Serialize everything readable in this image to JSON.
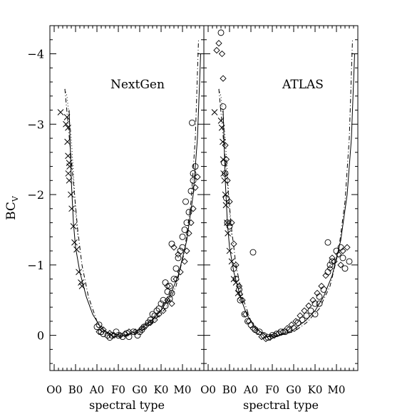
{
  "chart_data": {
    "type": "scatter",
    "ylabel": "BC",
    "ylabel_subscript": "V",
    "ylim": [
      0.5,
      -4.4
    ],
    "y_ticks": [
      {
        "v": 0,
        "label": "0"
      },
      {
        "v": -1,
        "label": "−1"
      },
      {
        "v": -2,
        "label": "−2"
      },
      {
        "v": -3,
        "label": "−3"
      },
      {
        "v": -4,
        "label": "−4"
      }
    ],
    "x_tick_labels": [
      "O0",
      "B0",
      "A0",
      "F0",
      "G0",
      "K0",
      "M0"
    ],
    "x_tick_positions": [
      0,
      10,
      20,
      30,
      40,
      50,
      60
    ],
    "xlim": [
      -2,
      70
    ],
    "xlabel": "spectral type",
    "panels": [
      {
        "title": "NextGen",
        "crosses": [
          [
            3,
            -3.17
          ],
          [
            5.5,
            -3.0
          ],
          [
            6,
            -3.1
          ],
          [
            6.5,
            -2.95
          ],
          [
            6.2,
            -2.75
          ],
          [
            6.5,
            -2.55
          ],
          [
            7.0,
            -2.45
          ],
          [
            6.6,
            -2.3
          ],
          [
            7.2,
            -2.4
          ],
          [
            7.0,
            -2.2
          ],
          [
            7.8,
            -2.0
          ],
          [
            8.2,
            -1.8
          ],
          [
            9.0,
            -1.55
          ],
          [
            9.5,
            -1.32
          ],
          [
            10.5,
            -1.22
          ],
          [
            11.5,
            -0.9
          ],
          [
            12.5,
            -0.75
          ],
          [
            13.0,
            -0.7
          ]
        ],
        "circles": [
          [
            20,
            -0.12
          ],
          [
            21,
            -0.15
          ],
          [
            22,
            -0.05
          ],
          [
            23,
            -0.02
          ],
          [
            25,
            0.0
          ],
          [
            26,
            0.03
          ],
          [
            27,
            0.0
          ],
          [
            29,
            -0.05
          ],
          [
            30,
            0.0
          ],
          [
            32,
            0.02
          ],
          [
            34,
            -0.03
          ],
          [
            35,
            0.02
          ],
          [
            37,
            -0.05
          ],
          [
            39,
            0.0
          ],
          [
            40,
            -0.05
          ],
          [
            41,
            -0.08
          ],
          [
            42,
            -0.12
          ],
          [
            44,
            -0.18
          ],
          [
            45,
            -0.22
          ],
          [
            46,
            -0.3
          ],
          [
            47,
            -0.28
          ],
          [
            48,
            -0.35
          ],
          [
            49,
            -0.38
          ],
          [
            50,
            -0.45
          ],
          [
            51,
            -0.5
          ],
          [
            52,
            -0.42
          ],
          [
            53,
            -0.62
          ],
          [
            54,
            -0.7
          ],
          [
            55,
            -0.6
          ],
          [
            56,
            -0.8
          ],
          [
            57,
            -0.95
          ],
          [
            58,
            -1.1
          ],
          [
            59,
            -1.2
          ],
          [
            60,
            -1.4
          ],
          [
            61,
            -1.5
          ],
          [
            62,
            -1.6
          ],
          [
            63,
            -1.75
          ],
          [
            64,
            -2.05
          ],
          [
            65,
            -2.2
          ],
          [
            66,
            -2.4
          ],
          [
            64.5,
            -3.02
          ],
          [
            65,
            -2.3
          ],
          [
            60,
            -1.25
          ],
          [
            55,
            -1.3
          ],
          [
            61.5,
            -1.9
          ],
          [
            54,
            -0.52
          ],
          [
            52,
            -0.75
          ]
        ],
        "diamonds": [
          [
            21,
            -0.05
          ],
          [
            23,
            -0.08
          ],
          [
            26,
            -0.03
          ],
          [
            28,
            0.0
          ],
          [
            31,
            0.0
          ],
          [
            33,
            -0.02
          ],
          [
            35,
            -0.05
          ],
          [
            38,
            -0.05
          ],
          [
            41,
            -0.1
          ],
          [
            43,
            -0.14
          ],
          [
            45,
            -0.18
          ],
          [
            47,
            -0.22
          ],
          [
            49,
            -0.3
          ],
          [
            51,
            -0.35
          ],
          [
            53,
            -0.5
          ],
          [
            55,
            -0.45
          ],
          [
            57,
            -0.8
          ],
          [
            59,
            -0.9
          ],
          [
            61,
            -1.05
          ],
          [
            62,
            -1.2
          ],
          [
            63,
            -1.45
          ],
          [
            64,
            -1.6
          ],
          [
            65,
            -1.8
          ],
          [
            66,
            -2.1
          ],
          [
            67,
            -2.25
          ],
          [
            58,
            -1.15
          ],
          [
            56,
            -1.25
          ],
          [
            53,
            -0.7
          ]
        ]
      },
      {
        "title": "ATLAS",
        "crosses": [
          [
            3,
            -3.17
          ],
          [
            6,
            -3.05
          ],
          [
            6.4,
            -2.95
          ],
          [
            6.8,
            -2.75
          ],
          [
            7.0,
            -2.5
          ],
          [
            7.2,
            -2.3
          ],
          [
            7.6,
            -2.2
          ],
          [
            8.0,
            -2.0
          ],
          [
            8.3,
            -1.85
          ],
          [
            8.8,
            -1.6
          ],
          [
            9.2,
            -1.45
          ],
          [
            10.0,
            -1.2
          ],
          [
            11.0,
            -1.05
          ],
          [
            12.0,
            -0.8
          ],
          [
            13.0,
            -0.75
          ],
          [
            14.0,
            -0.6
          ],
          [
            15.0,
            -0.55
          ]
        ],
        "circles": [
          [
            6,
            -4.3
          ],
          [
            7,
            -3.25
          ],
          [
            7.5,
            -2.45
          ],
          [
            8,
            -2.3
          ],
          [
            8.5,
            -1.95
          ],
          [
            9,
            -1.6
          ],
          [
            10,
            -1.55
          ],
          [
            12,
            -0.95
          ],
          [
            13,
            -0.8
          ],
          [
            14.5,
            -0.65
          ],
          [
            15,
            -0.5
          ],
          [
            17,
            -0.3
          ],
          [
            18.5,
            -0.2
          ],
          [
            20,
            -0.15
          ],
          [
            22,
            -0.08
          ],
          [
            24,
            -0.05
          ],
          [
            26,
            0.0
          ],
          [
            28,
            0.03
          ],
          [
            30,
            0.0
          ],
          [
            32,
            -0.02
          ],
          [
            34,
            -0.05
          ],
          [
            36,
            -0.05
          ],
          [
            38,
            -0.08
          ],
          [
            40,
            -0.1
          ],
          [
            42,
            -0.18
          ],
          [
            44,
            -0.22
          ],
          [
            46,
            -0.28
          ],
          [
            48,
            -0.35
          ],
          [
            50,
            -0.45
          ],
          [
            52,
            -0.55
          ],
          [
            54,
            -0.65
          ],
          [
            56,
            -0.9
          ],
          [
            57,
            -1.0
          ],
          [
            58,
            -1.05
          ],
          [
            60,
            -1.2
          ],
          [
            62,
            -1.25
          ],
          [
            63,
            -1.1
          ],
          [
            64,
            -0.95
          ],
          [
            21,
            -1.18
          ],
          [
            56,
            -1.32
          ],
          [
            66,
            -1.05
          ],
          [
            50,
            -0.3
          ],
          [
            52,
            -0.45
          ]
        ],
        "diamonds": [
          [
            4,
            -4.05
          ],
          [
            5,
            -4.15
          ],
          [
            6.5,
            -4.0
          ],
          [
            7,
            -3.65
          ],
          [
            8,
            -2.7
          ],
          [
            8.5,
            -2.5
          ],
          [
            9,
            -2.2
          ],
          [
            10,
            -1.9
          ],
          [
            11,
            -1.6
          ],
          [
            12,
            -1.3
          ],
          [
            13,
            -1.0
          ],
          [
            14.5,
            -0.7
          ],
          [
            16,
            -0.5
          ],
          [
            17.5,
            -0.3
          ],
          [
            19,
            -0.2
          ],
          [
            21,
            -0.1
          ],
          [
            23,
            -0.05
          ],
          [
            25,
            0.02
          ],
          [
            27,
            0.05
          ],
          [
            29,
            0.03
          ],
          [
            31,
            0.0
          ],
          [
            33,
            -0.03
          ],
          [
            35,
            -0.05
          ],
          [
            37,
            -0.1
          ],
          [
            39,
            -0.15
          ],
          [
            41,
            -0.2
          ],
          [
            43,
            -0.28
          ],
          [
            45,
            -0.35
          ],
          [
            47,
            -0.42
          ],
          [
            49,
            -0.5
          ],
          [
            51,
            -0.6
          ],
          [
            53,
            -0.7
          ],
          [
            55,
            -0.85
          ],
          [
            57,
            -0.95
          ],
          [
            59,
            -1.05
          ],
          [
            61,
            -1.15
          ],
          [
            63,
            -1.2
          ],
          [
            65,
            -1.25
          ],
          [
            62,
            -1.0
          ],
          [
            58,
            -1.1
          ]
        ]
      }
    ]
  }
}
